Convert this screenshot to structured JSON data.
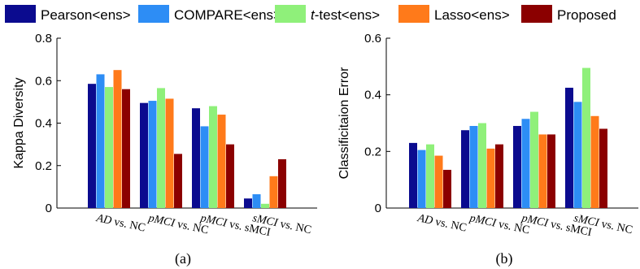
{
  "legend": [
    {
      "label": "Pearson<ens>",
      "color": "#0b0b8f"
    },
    {
      "label": "COMPARE<ens>",
      "color": "#2d8df5"
    },
    {
      "label": "t-test<ens>",
      "color": "#8ff07a"
    },
    {
      "label": "Lasso<ens>",
      "color": "#ff7a1a"
    },
    {
      "label": "Proposed",
      "color": "#8b0000"
    }
  ],
  "chart_data": [
    {
      "type": "bar",
      "panel_label": "(a)",
      "ylabel": "Kappa Diversity",
      "ylim": [
        0,
        0.8
      ],
      "yticks": [
        "0",
        "0.2",
        "0.4",
        "0.6",
        "0.8"
      ],
      "categories": [
        "AD vs. NC",
        "pMCI vs. NC",
        "pMCI vs. sMCI",
        "sMCI vs. NC"
      ],
      "series": [
        {
          "name": "Pearson<ens>",
          "values": [
            0.585,
            0.495,
            0.47,
            0.045
          ]
        },
        {
          "name": "COMPARE<ens>",
          "values": [
            0.63,
            0.505,
            0.385,
            0.065
          ]
        },
        {
          "name": "t-test<ens>",
          "values": [
            0.57,
            0.565,
            0.48,
            0.02
          ]
        },
        {
          "name": "Lasso<ens>",
          "values": [
            0.65,
            0.515,
            0.44,
            0.15
          ]
        },
        {
          "name": "Proposed",
          "values": [
            0.56,
            0.255,
            0.3,
            0.23
          ]
        }
      ]
    },
    {
      "type": "bar",
      "panel_label": "(b)",
      "ylabel": "Classificitaion Error",
      "ylim": [
        0,
        0.6
      ],
      "yticks": [
        "0",
        "0.2",
        "0.4",
        "0.6"
      ],
      "categories": [
        "AD vs. NC",
        "pMCI vs. NC",
        "pMCI vs. sMCI",
        "sMCI vs. NC"
      ],
      "series": [
        {
          "name": "Pearson<ens>",
          "values": [
            0.23,
            0.275,
            0.29,
            0.425
          ]
        },
        {
          "name": "COMPARE<ens>",
          "values": [
            0.205,
            0.29,
            0.315,
            0.375
          ]
        },
        {
          "name": "t-test<ens>",
          "values": [
            0.225,
            0.3,
            0.34,
            0.495
          ]
        },
        {
          "name": "Lasso<ens>",
          "values": [
            0.185,
            0.21,
            0.26,
            0.325
          ]
        },
        {
          "name": "Proposed",
          "values": [
            0.135,
            0.225,
            0.26,
            0.28
          ]
        }
      ]
    }
  ]
}
